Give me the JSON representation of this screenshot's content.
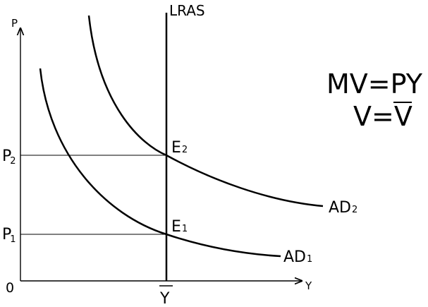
{
  "labels": {
    "y_axis": "P",
    "x_axis": "Y",
    "origin": "0",
    "lras": "LRAS",
    "p2_main": "P",
    "p2_sub": "2",
    "p1_main": "P",
    "p1_sub": "1",
    "e2_main": "E",
    "e2_sub": "2",
    "e1_main": "E",
    "e1_sub": "1",
    "ad2_main": "AD",
    "ad2_sub": "2",
    "ad1_main": "AD",
    "ad1_sub": "1",
    "y_bar": "Y"
  },
  "formulas": {
    "line1": "MV=PY",
    "line2_left": "V=",
    "line2_right": "V"
  },
  "colors": {
    "ink": "#000000",
    "background": "#ffffff"
  }
}
